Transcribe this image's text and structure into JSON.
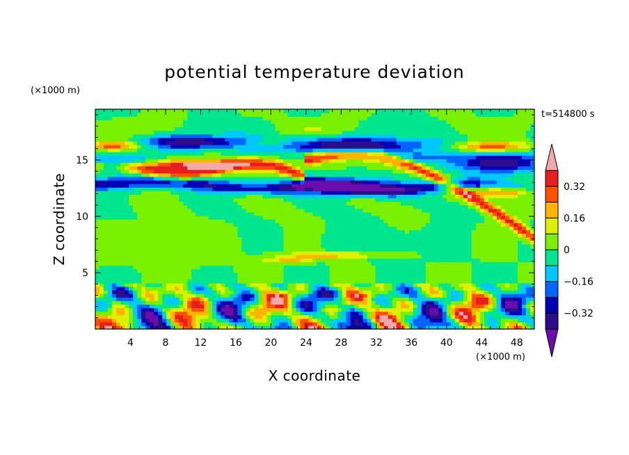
{
  "chart_data": {
    "type": "heatmap",
    "title": "potential temperature deviation",
    "xlabel": "X coordinate",
    "ylabel": "Z coordinate",
    "x_unit": "(×1000 m)",
    "y_unit": "(×1000 m)",
    "time_label": "t=514800 s",
    "xlim": [
      0,
      50
    ],
    "ylim": [
      0,
      19.5
    ],
    "x_ticks": [
      "4",
      "8",
      "12",
      "16",
      "20",
      "24",
      "28",
      "32",
      "36",
      "40",
      "44",
      "48"
    ],
    "y_ticks": [
      "5",
      "10",
      "15"
    ],
    "colorbar": {
      "levels": [
        -0.4,
        -0.32,
        -0.24,
        -0.16,
        -0.08,
        0,
        0.08,
        0.16,
        0.24,
        0.32,
        0.4
      ],
      "tick_labels": [
        "0.32",
        "0.16",
        "0",
        "−0.16",
        "−0.32"
      ],
      "colors": [
        "#6a0dad",
        "#2e0d8c",
        "#0000b4",
        "#0064ff",
        "#00c8ff",
        "#00e68c",
        "#78f000",
        "#dcf000",
        "#ffb400",
        "#ff5000",
        "#e61e1e",
        "#f4a8a8"
      ]
    }
  }
}
